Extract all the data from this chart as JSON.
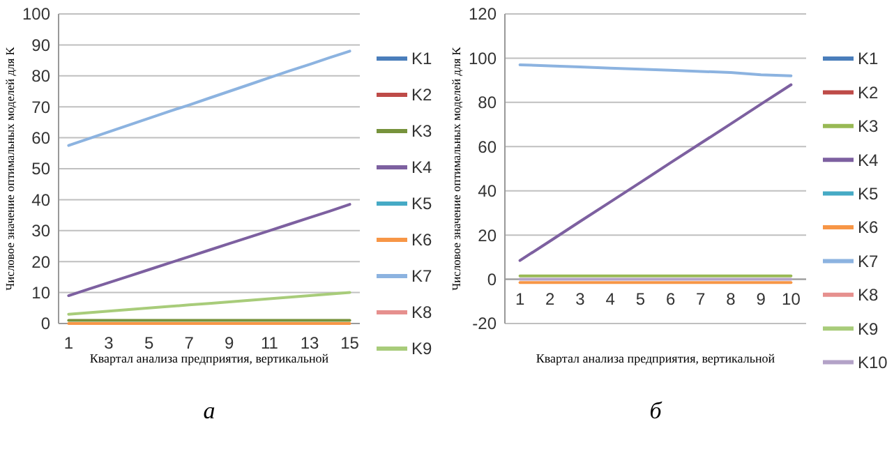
{
  "chart_data": [
    {
      "type": "line",
      "xlabel": "Квартал анализа предприятия, вертикальной",
      "ylabel": "Числовое значение оптимальных моделей для K",
      "annotations": [
        "а"
      ],
      "x": [
        1,
        2,
        3,
        4,
        5,
        6,
        7,
        8,
        9,
        10,
        11,
        12,
        13,
        14,
        15
      ],
      "xlim": [
        0.5,
        15.5
      ],
      "xticks": [
        1,
        3,
        5,
        7,
        9,
        11,
        13,
        15
      ],
      "ylim": [
        0,
        100
      ],
      "yticks": [
        0,
        10,
        20,
        30,
        40,
        50,
        60,
        70,
        80,
        90,
        100
      ],
      "grid": "y",
      "legend": "right",
      "series": [
        {
          "name": "K1",
          "color": "#4a7ebb",
          "values": [
            null,
            null,
            null,
            null,
            null,
            null,
            null,
            null,
            null,
            null,
            null,
            null,
            null,
            null,
            null
          ]
        },
        {
          "name": "K2",
          "color": "#be4b48",
          "values": [
            null,
            null,
            null,
            null,
            null,
            null,
            null,
            null,
            null,
            null,
            null,
            null,
            null,
            null,
            null
          ]
        },
        {
          "name": "K3",
          "color": "#77933c",
          "values": [
            1,
            1,
            1,
            1,
            1,
            1,
            1,
            1,
            1,
            1,
            1,
            1,
            1,
            1,
            1
          ]
        },
        {
          "name": "K4",
          "color": "#7d60a0",
          "values": [
            9,
            11.1,
            13.2,
            15.3,
            17.4,
            19.5,
            21.6,
            23.7,
            25.8,
            27.9,
            30,
            32.1,
            34.2,
            36.3,
            38.5
          ]
        },
        {
          "name": "K5",
          "color": "#46aac5",
          "values": [
            null,
            null,
            null,
            null,
            null,
            null,
            null,
            null,
            null,
            null,
            null,
            null,
            null,
            null,
            null
          ]
        },
        {
          "name": "K6",
          "color": "#f79646",
          "values": [
            0,
            0,
            0,
            0,
            0,
            0,
            0,
            0,
            0,
            0,
            0,
            0,
            0,
            0,
            0
          ]
        },
        {
          "name": "K7",
          "color": "#8cb3e0",
          "values": [
            57.5,
            59.7,
            61.9,
            64.1,
            66.3,
            68.5,
            70.6,
            72.8,
            75,
            77.2,
            79.4,
            81.6,
            83.7,
            85.9,
            88
          ]
        },
        {
          "name": "K8",
          "color": "#e6908e",
          "values": [
            null,
            null,
            null,
            null,
            null,
            null,
            null,
            null,
            null,
            null,
            null,
            null,
            null,
            null,
            null
          ]
        },
        {
          "name": "K9",
          "color": "#a8cc7a",
          "values": [
            3,
            3.5,
            4,
            4.5,
            5,
            5.5,
            6,
            6.5,
            7,
            7.5,
            8,
            8.5,
            9,
            9.5,
            10
          ]
        }
      ]
    },
    {
      "type": "line",
      "xlabel": "Квартал анализа предприятия, вертикальной",
      "ylabel": "Числовое значение оптимальных моделей для K",
      "annotations": [
        "б"
      ],
      "categories": [
        "1",
        "2",
        "3",
        "4",
        "5",
        "6",
        "7",
        "8",
        "9",
        "10"
      ],
      "ylim": [
        -20,
        120
      ],
      "yticks": [
        -20,
        0,
        20,
        40,
        60,
        80,
        100,
        120
      ],
      "grid": "y",
      "legend": "right",
      "series": [
        {
          "name": "K1",
          "color": "#4a7ebb",
          "values": [
            null,
            null,
            null,
            null,
            null,
            null,
            null,
            null,
            null,
            null
          ]
        },
        {
          "name": "K2",
          "color": "#be4b48",
          "values": [
            null,
            null,
            null,
            null,
            null,
            null,
            null,
            null,
            null,
            null
          ]
        },
        {
          "name": "K3",
          "color": "#98b954",
          "values": [
            1.5,
            1.5,
            1.5,
            1.5,
            1.5,
            1.5,
            1.5,
            1.5,
            1.5,
            1.5
          ]
        },
        {
          "name": "K4",
          "color": "#7d60a0",
          "values": [
            8.5,
            17.3,
            26.2,
            35,
            43.8,
            52.7,
            61.5,
            70.3,
            79.2,
            88
          ]
        },
        {
          "name": "K5",
          "color": "#46aac5",
          "values": [
            null,
            null,
            null,
            null,
            null,
            null,
            null,
            null,
            null,
            null
          ]
        },
        {
          "name": "K6",
          "color": "#f79646",
          "values": [
            -1.5,
            -1.5,
            -1.5,
            -1.5,
            -1.5,
            -1.5,
            -1.5,
            -1.5,
            -1.5,
            -1.5
          ]
        },
        {
          "name": "K7",
          "color": "#8cb3e0",
          "values": [
            97,
            96.5,
            96,
            95.5,
            95,
            94.5,
            94,
            93.5,
            92.5,
            92
          ]
        },
        {
          "name": "K8",
          "color": "#e6908e",
          "values": [
            null,
            null,
            null,
            null,
            null,
            null,
            null,
            null,
            null,
            null
          ]
        },
        {
          "name": "K9",
          "color": "#a8cc7a",
          "values": [
            null,
            null,
            null,
            null,
            null,
            null,
            null,
            null,
            null,
            null
          ]
        },
        {
          "name": "K10",
          "color": "#b3a2c7",
          "values": [
            0,
            0,
            0,
            0,
            0,
            0,
            0,
            0,
            0,
            0
          ]
        }
      ]
    }
  ]
}
